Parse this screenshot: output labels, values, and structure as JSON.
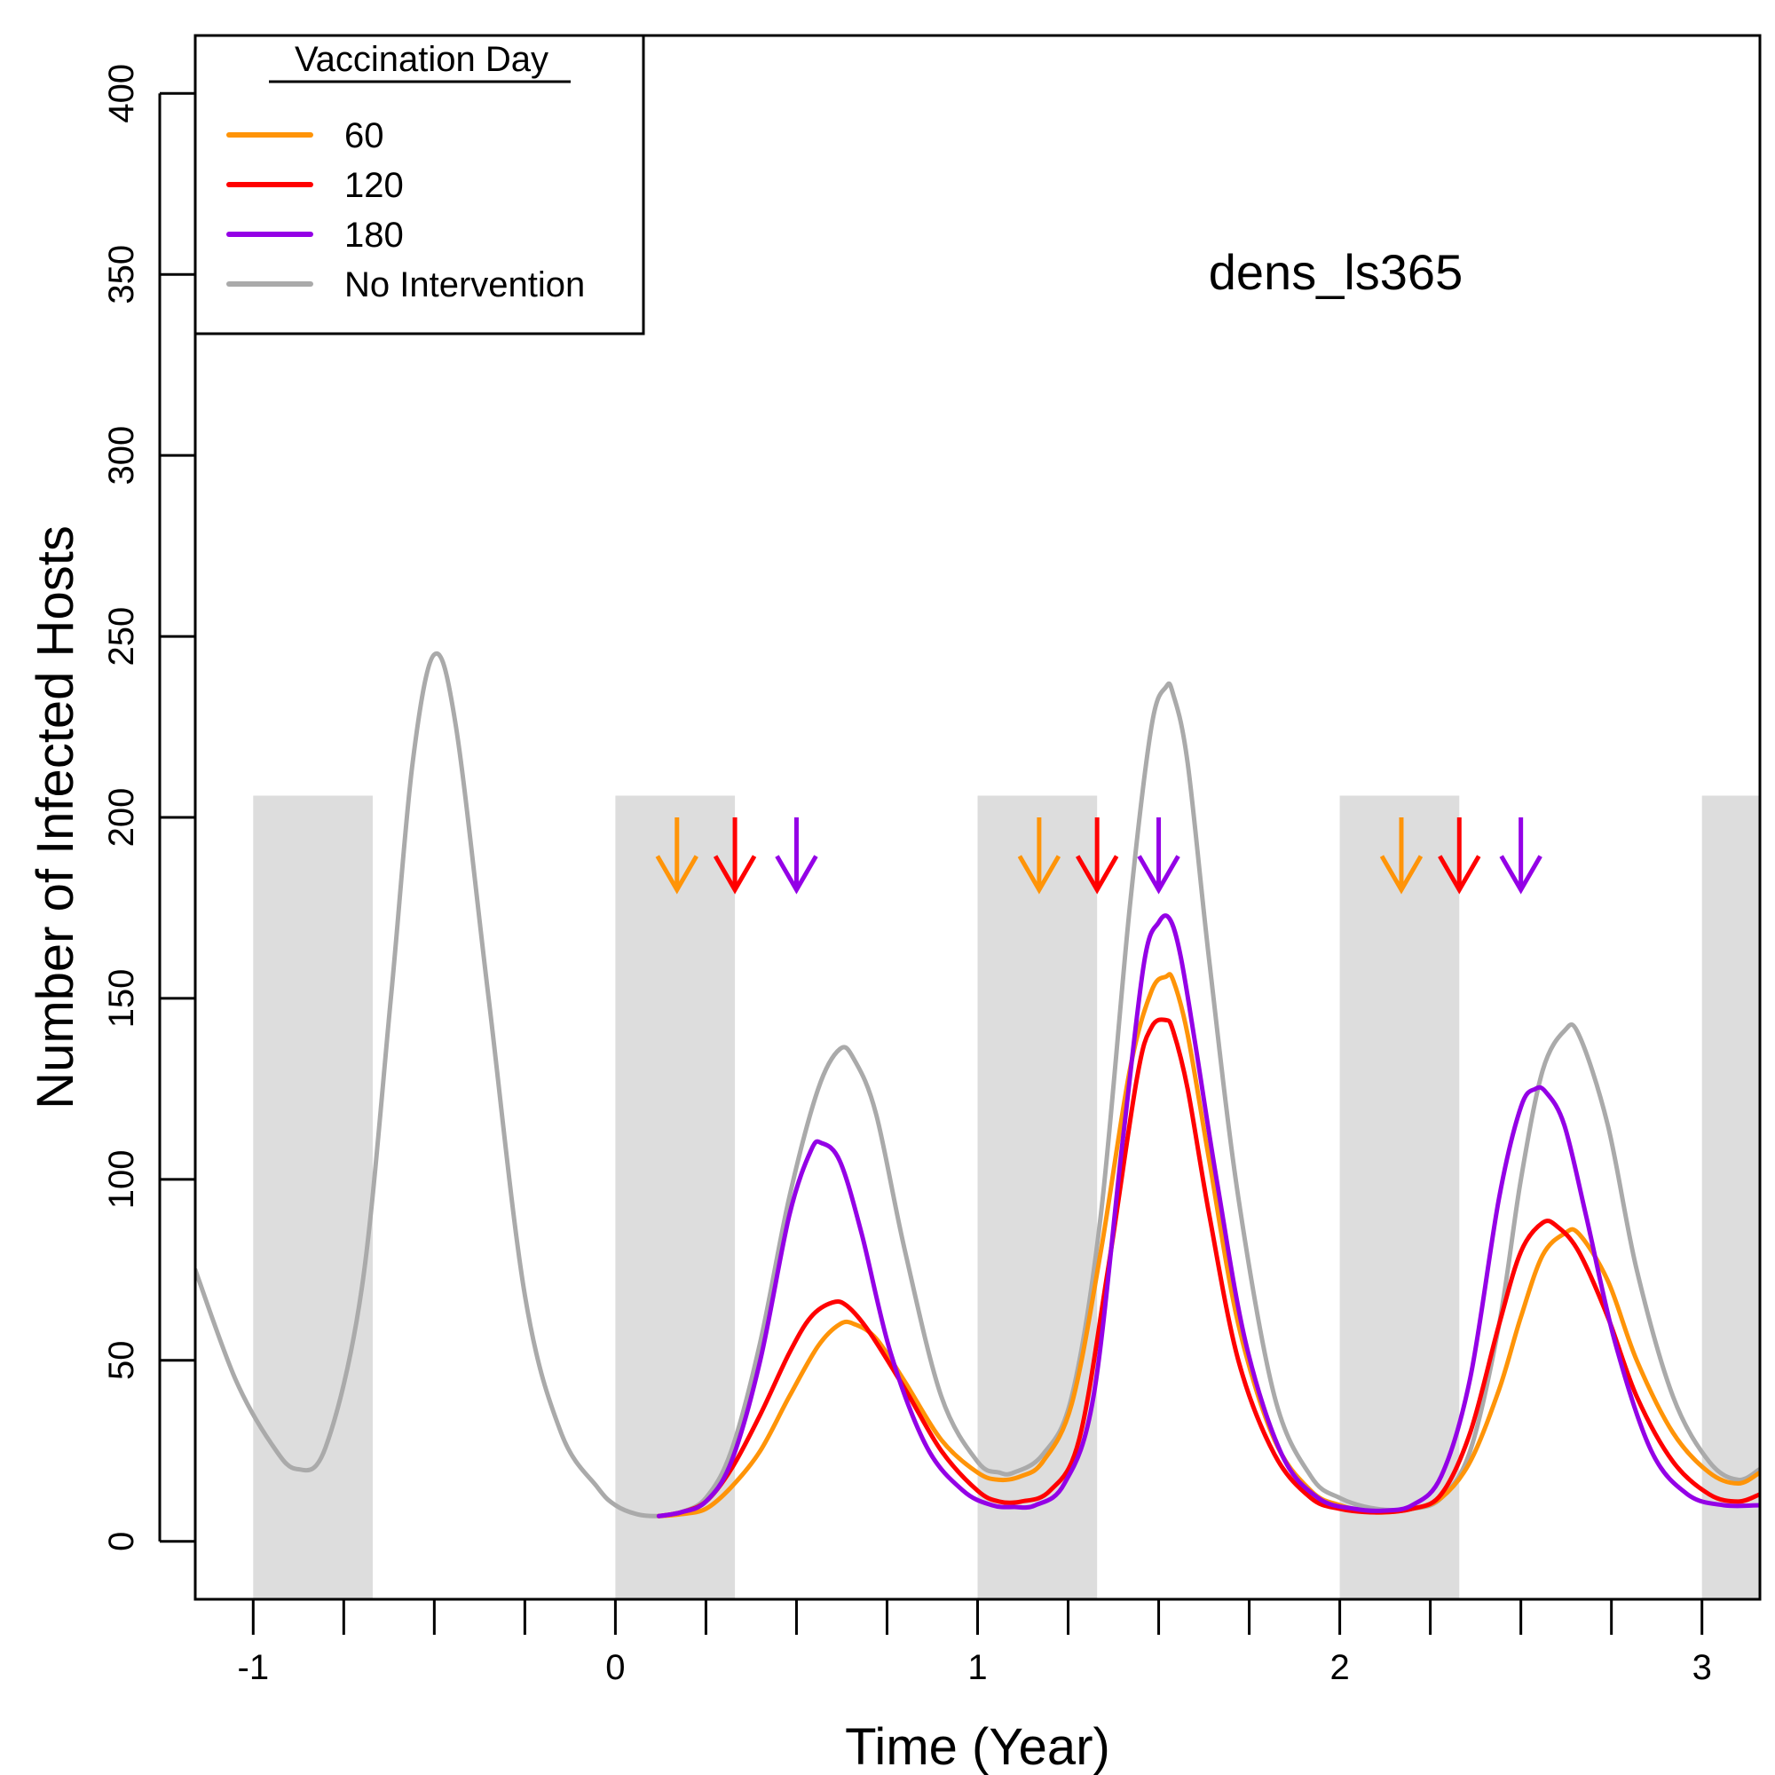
{
  "chart_data": {
    "type": "line",
    "title": "",
    "xlabel": "Time (Year)",
    "ylabel": "Number of Infected Hosts",
    "annotation": "dens_ls365",
    "xlim": [
      -1.16,
      3.16
    ],
    "ylim": [
      -16,
      416
    ],
    "x_ticks": [
      -1,
      0,
      1,
      2,
      3
    ],
    "x_minor_ticks": [
      -1,
      -0.75,
      -0.5,
      -0.25,
      0,
      0.25,
      0.5,
      0.75,
      1,
      1.25,
      1.5,
      1.75,
      2,
      2.25,
      2.5,
      2.75,
      3
    ],
    "y_ticks": [
      0,
      50,
      100,
      150,
      200,
      250,
      300,
      350,
      400
    ],
    "grid": false,
    "legend": {
      "title": "Vaccination Day",
      "placement": "top-left",
      "entries": [
        {
          "label": "60",
          "color": "#FF9408"
        },
        {
          "label": "120",
          "color": "#FF0000"
        },
        {
          "label": "180",
          "color": "#9400E6"
        },
        {
          "label": "No Intervention",
          "color": "#AAAAAA"
        }
      ]
    },
    "shaded_bands": {
      "color": "#DDDDDD",
      "y_top": 206,
      "ranges": [
        [
          -1,
          -0.67
        ],
        [
          0,
          0.33
        ],
        [
          1,
          1.33
        ],
        [
          2,
          2.33
        ],
        [
          3,
          3.33
        ]
      ]
    },
    "arrows": [
      {
        "x": 0.17,
        "color": "#FF9408"
      },
      {
        "x": 0.33,
        "color": "#FF0000"
      },
      {
        "x": 0.5,
        "color": "#9400E6"
      },
      {
        "x": 1.17,
        "color": "#FF9408"
      },
      {
        "x": 1.33,
        "color": "#FF0000"
      },
      {
        "x": 1.5,
        "color": "#9400E6"
      },
      {
        "x": 2.17,
        "color": "#FF9408"
      },
      {
        "x": 2.33,
        "color": "#FF0000"
      },
      {
        "x": 2.5,
        "color": "#9400E6"
      }
    ],
    "arrow_y_range": [
      180,
      200
    ],
    "series": [
      {
        "name": "No Intervention",
        "color": "#AAAAAA",
        "x": [
          -1.16,
          -1.05,
          -0.95,
          -0.88,
          -0.8,
          -0.7,
          -0.62,
          -0.56,
          -0.5,
          -0.44,
          -0.35,
          -0.25,
          -0.15,
          -0.05,
          0.0,
          0.06,
          0.12,
          0.18,
          0.25,
          0.32,
          0.4,
          0.48,
          0.56,
          0.62,
          0.66,
          0.72,
          0.8,
          0.9,
          1.0,
          1.06,
          1.1,
          1.18,
          1.26,
          1.34,
          1.42,
          1.48,
          1.52,
          1.54,
          1.58,
          1.64,
          1.72,
          1.82,
          1.92,
          2.0,
          2.1,
          2.2,
          2.28,
          2.36,
          2.44,
          2.5,
          2.56,
          2.62,
          2.66,
          2.74,
          2.82,
          2.92,
          3.02,
          3.1,
          3.16
        ],
        "y": [
          75,
          45,
          27,
          20,
          26,
          70,
          150,
          215,
          245,
          225,
          150,
          68,
          30,
          15,
          10,
          7.5,
          7,
          8,
          12,
          25,
          55,
          95,
          125,
          136,
          133,
          118,
          80,
          40,
          22,
          19,
          19,
          24,
          40,
          90,
          175,
          225,
          236,
          234,
          215,
          160,
          95,
          40,
          18,
          12,
          9,
          9,
          12,
          25,
          60,
          100,
          130,
          141,
          140,
          115,
          75,
          40,
          22,
          17,
          20
        ]
      },
      {
        "name": "60",
        "color": "#FF9408",
        "x": [
          0.12,
          0.18,
          0.25,
          0.32,
          0.4,
          0.48,
          0.56,
          0.62,
          0.66,
          0.72,
          0.8,
          0.9,
          1.0,
          1.06,
          1.12,
          1.18,
          1.26,
          1.34,
          1.42,
          1.48,
          1.52,
          1.54,
          1.58,
          1.64,
          1.72,
          1.82,
          1.92,
          2.0,
          2.1,
          2.2,
          2.28,
          2.36,
          2.44,
          2.5,
          2.56,
          2.62,
          2.66,
          2.74,
          2.82,
          2.92,
          3.02,
          3.1,
          3.16
        ],
        "y": [
          7,
          7.5,
          9,
          15,
          25,
          40,
          54,
          60,
          60,
          56,
          44,
          28,
          19,
          17,
          18,
          22,
          38,
          80,
          130,
          152,
          156,
          155,
          140,
          105,
          60,
          28,
          14,
          10,
          8,
          9,
          12,
          22,
          42,
          62,
          79,
          85,
          85,
          72,
          50,
          30,
          19,
          16,
          19
        ]
      },
      {
        "name": "120",
        "color": "#FF0000",
        "x": [
          0.12,
          0.18,
          0.25,
          0.32,
          0.4,
          0.48,
          0.54,
          0.6,
          0.64,
          0.7,
          0.8,
          0.9,
          1.0,
          1.06,
          1.12,
          1.2,
          1.28,
          1.36,
          1.44,
          1.48,
          1.52,
          1.54,
          1.58,
          1.64,
          1.72,
          1.82,
          1.92,
          2.0,
          2.1,
          2.2,
          2.28,
          2.36,
          2.44,
          2.5,
          2.56,
          2.6,
          2.66,
          2.74,
          2.82,
          2.92,
          3.02,
          3.1,
          3.16
        ],
        "y": [
          7,
          8,
          11,
          20,
          35,
          52,
          62,
          66,
          65,
          58,
          42,
          25,
          14,
          11,
          11,
          14,
          28,
          75,
          128,
          142,
          144,
          141,
          125,
          90,
          50,
          24,
          12,
          9,
          8,
          9,
          13,
          30,
          60,
          80,
          88,
          87,
          80,
          62,
          40,
          22,
          13,
          11,
          13
        ]
      },
      {
        "name": "180",
        "color": "#9400E6",
        "x": [
          0.12,
          0.18,
          0.25,
          0.32,
          0.4,
          0.48,
          0.54,
          0.57,
          0.62,
          0.68,
          0.76,
          0.86,
          0.96,
          1.04,
          1.1,
          1.16,
          1.24,
          1.32,
          1.4,
          1.46,
          1.5,
          1.53,
          1.56,
          1.6,
          1.66,
          1.74,
          1.84,
          1.94,
          2.04,
          2.12,
          2.2,
          2.28,
          2.36,
          2.44,
          2.5,
          2.54,
          2.57,
          2.62,
          2.68,
          2.76,
          2.86,
          2.96,
          3.06,
          3.16
        ],
        "y": [
          7,
          8,
          11,
          22,
          50,
          90,
          108,
          110,
          105,
          85,
          52,
          26,
          14,
          10,
          9.5,
          10,
          16,
          40,
          110,
          160,
          171,
          172,
          162,
          138,
          100,
          55,
          24,
          12,
          9,
          8.5,
          10,
          18,
          45,
          95,
          120,
          125,
          124,
          115,
          90,
          55,
          25,
          13,
          10,
          10
        ]
      }
    ]
  }
}
